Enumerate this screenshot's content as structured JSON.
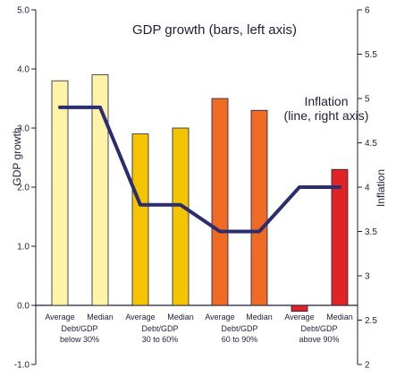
{
  "chart_data": {
    "type": "bar",
    "title": "GDP growth (bars, left axis)",
    "annotation": [
      "Inflation",
      "(line, right axis)"
    ],
    "ylabel": "GDP growth",
    "y2label": "Inflation",
    "ylim": [
      -1.0,
      5.0
    ],
    "y2lim": [
      2,
      6
    ],
    "yticks": [
      "-1.0",
      "0.0",
      "1.0",
      "2.0",
      "3.0",
      "4.0",
      "5.0"
    ],
    "y2ticks": [
      "2",
      "2.5",
      "3",
      "3.5",
      "4",
      "4.5",
      "5",
      "5.5",
      "6"
    ],
    "categories": [
      "Average",
      "Median",
      "Average",
      "Median",
      "Average",
      "Median",
      "Average",
      "Median"
    ],
    "groups": [
      {
        "line1": "Debt/GDP",
        "line2": "below 30%"
      },
      {
        "line1": "Debt/GDP",
        "line2": "30 to 60%"
      },
      {
        "line1": "Debt/GDP",
        "line2": "60 to 90%"
      },
      {
        "line1": "Debt/GDP",
        "line2": "above 90%"
      }
    ],
    "series": [
      {
        "kind": "bar",
        "axis": "left",
        "values": [
          3.8,
          3.9,
          2.9,
          3.0,
          3.5,
          3.3,
          -0.1,
          2.3
        ],
        "colors": [
          "#fff3a8",
          "#fff3a8",
          "#f5c400",
          "#f5c400",
          "#ef6a22",
          "#ef6a22",
          "#e02424",
          "#e02424"
        ]
      },
      {
        "kind": "line",
        "axis": "right",
        "values": [
          4.9,
          4.9,
          3.8,
          3.8,
          3.5,
          3.5,
          4.0,
          4.0
        ],
        "color": "#2b2d6e"
      }
    ]
  }
}
